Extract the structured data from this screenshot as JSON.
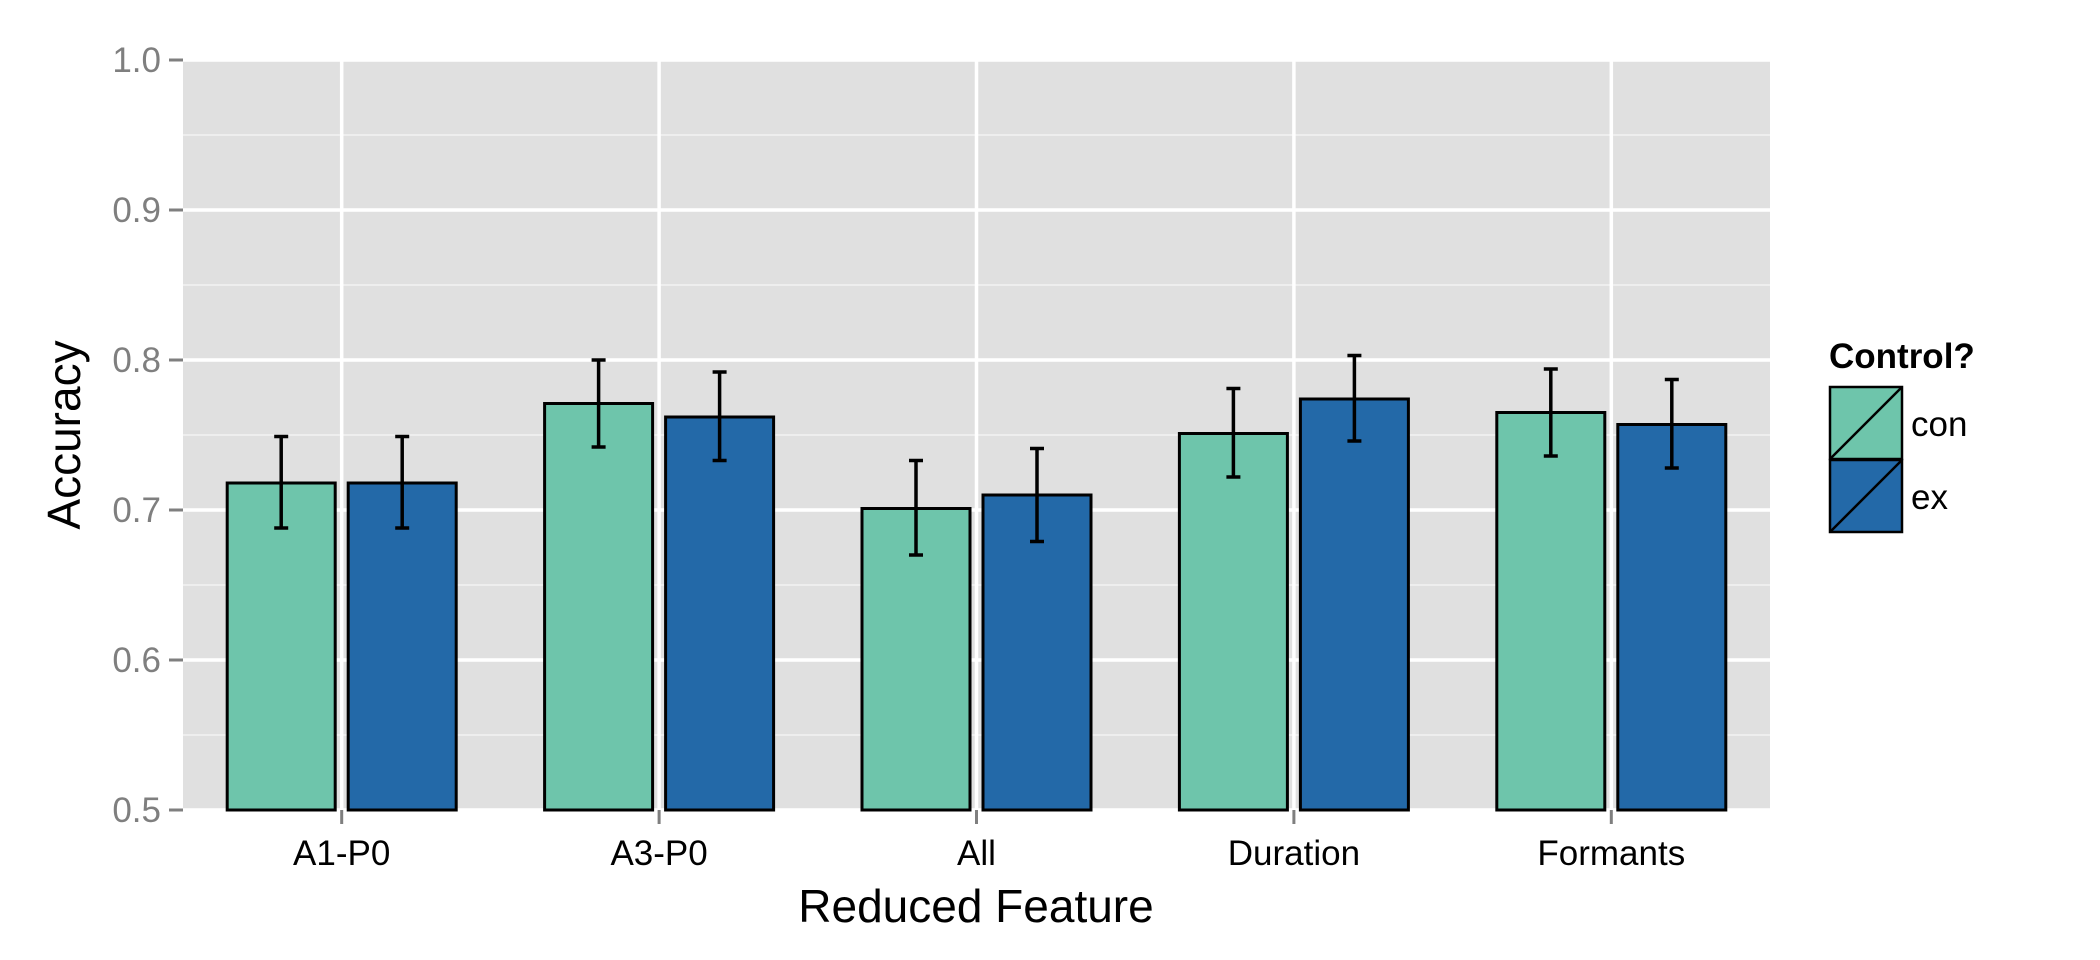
{
  "chart_data": {
    "type": "bar",
    "xlabel": "Reduced Feature",
    "ylabel": "Accuracy",
    "ylim": [
      0.5,
      1.0
    ],
    "yticks": [
      "0.5",
      "0.6",
      "0.7",
      "0.8",
      "0.9",
      "1.0"
    ],
    "categories": [
      "A1-P0",
      "A3-P0",
      "All",
      "Duration",
      "Formants"
    ],
    "series": [
      {
        "name": "con",
        "color": "#6ec5ab",
        "values": [
          0.718,
          0.771,
          0.701,
          0.751,
          0.765
        ],
        "error_low": [
          0.688,
          0.742,
          0.67,
          0.722,
          0.736
        ],
        "error_high": [
          0.749,
          0.8,
          0.733,
          0.781,
          0.794
        ]
      },
      {
        "name": "ex",
        "color": "#2369a8",
        "values": [
          0.718,
          0.762,
          0.71,
          0.774,
          0.757
        ],
        "error_low": [
          0.688,
          0.733,
          0.679,
          0.746,
          0.728
        ],
        "error_high": [
          0.749,
          0.792,
          0.741,
          0.803,
          0.787
        ]
      }
    ],
    "legend": {
      "title": "Control?",
      "position": "right"
    },
    "grid": true,
    "background": "#e0e0e0"
  }
}
